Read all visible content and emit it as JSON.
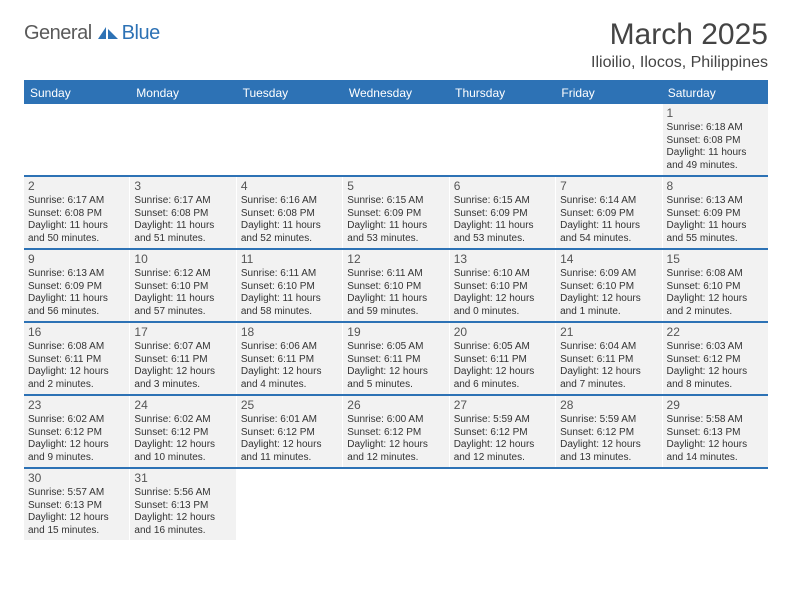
{
  "brand": {
    "part1": "General",
    "part2": "Blue",
    "icon_color": "#2d72b5"
  },
  "header": {
    "month_title": "March 2025",
    "location": "Ilioilio, Ilocos, Philippines"
  },
  "styling": {
    "header_bar_color": "#2d72b5",
    "cell_bg": "#f2f2f2",
    "separator_color": "#2d72b5",
    "text_color": "#333333",
    "brand_gray": "#5a5a5a"
  },
  "weekdays": [
    "Sunday",
    "Monday",
    "Tuesday",
    "Wednesday",
    "Thursday",
    "Friday",
    "Saturday"
  ],
  "weeks": [
    [
      null,
      null,
      null,
      null,
      null,
      null,
      {
        "num": "1",
        "sunrise": "6:18 AM",
        "sunset": "6:08 PM",
        "daylight": "11 hours and 49 minutes."
      }
    ],
    [
      {
        "num": "2",
        "sunrise": "6:17 AM",
        "sunset": "6:08 PM",
        "daylight": "11 hours and 50 minutes."
      },
      {
        "num": "3",
        "sunrise": "6:17 AM",
        "sunset": "6:08 PM",
        "daylight": "11 hours and 51 minutes."
      },
      {
        "num": "4",
        "sunrise": "6:16 AM",
        "sunset": "6:08 PM",
        "daylight": "11 hours and 52 minutes."
      },
      {
        "num": "5",
        "sunrise": "6:15 AM",
        "sunset": "6:09 PM",
        "daylight": "11 hours and 53 minutes."
      },
      {
        "num": "6",
        "sunrise": "6:15 AM",
        "sunset": "6:09 PM",
        "daylight": "11 hours and 53 minutes."
      },
      {
        "num": "7",
        "sunrise": "6:14 AM",
        "sunset": "6:09 PM",
        "daylight": "11 hours and 54 minutes."
      },
      {
        "num": "8",
        "sunrise": "6:13 AM",
        "sunset": "6:09 PM",
        "daylight": "11 hours and 55 minutes."
      }
    ],
    [
      {
        "num": "9",
        "sunrise": "6:13 AM",
        "sunset": "6:09 PM",
        "daylight": "11 hours and 56 minutes."
      },
      {
        "num": "10",
        "sunrise": "6:12 AM",
        "sunset": "6:10 PM",
        "daylight": "11 hours and 57 minutes."
      },
      {
        "num": "11",
        "sunrise": "6:11 AM",
        "sunset": "6:10 PM",
        "daylight": "11 hours and 58 minutes."
      },
      {
        "num": "12",
        "sunrise": "6:11 AM",
        "sunset": "6:10 PM",
        "daylight": "11 hours and 59 minutes."
      },
      {
        "num": "13",
        "sunrise": "6:10 AM",
        "sunset": "6:10 PM",
        "daylight": "12 hours and 0 minutes."
      },
      {
        "num": "14",
        "sunrise": "6:09 AM",
        "sunset": "6:10 PM",
        "daylight": "12 hours and 1 minute."
      },
      {
        "num": "15",
        "sunrise": "6:08 AM",
        "sunset": "6:10 PM",
        "daylight": "12 hours and 2 minutes."
      }
    ],
    [
      {
        "num": "16",
        "sunrise": "6:08 AM",
        "sunset": "6:11 PM",
        "daylight": "12 hours and 2 minutes."
      },
      {
        "num": "17",
        "sunrise": "6:07 AM",
        "sunset": "6:11 PM",
        "daylight": "12 hours and 3 minutes."
      },
      {
        "num": "18",
        "sunrise": "6:06 AM",
        "sunset": "6:11 PM",
        "daylight": "12 hours and 4 minutes."
      },
      {
        "num": "19",
        "sunrise": "6:05 AM",
        "sunset": "6:11 PM",
        "daylight": "12 hours and 5 minutes."
      },
      {
        "num": "20",
        "sunrise": "6:05 AM",
        "sunset": "6:11 PM",
        "daylight": "12 hours and 6 minutes."
      },
      {
        "num": "21",
        "sunrise": "6:04 AM",
        "sunset": "6:11 PM",
        "daylight": "12 hours and 7 minutes."
      },
      {
        "num": "22",
        "sunrise": "6:03 AM",
        "sunset": "6:12 PM",
        "daylight": "12 hours and 8 minutes."
      }
    ],
    [
      {
        "num": "23",
        "sunrise": "6:02 AM",
        "sunset": "6:12 PM",
        "daylight": "12 hours and 9 minutes."
      },
      {
        "num": "24",
        "sunrise": "6:02 AM",
        "sunset": "6:12 PM",
        "daylight": "12 hours and 10 minutes."
      },
      {
        "num": "25",
        "sunrise": "6:01 AM",
        "sunset": "6:12 PM",
        "daylight": "12 hours and 11 minutes."
      },
      {
        "num": "26",
        "sunrise": "6:00 AM",
        "sunset": "6:12 PM",
        "daylight": "12 hours and 12 minutes."
      },
      {
        "num": "27",
        "sunrise": "5:59 AM",
        "sunset": "6:12 PM",
        "daylight": "12 hours and 12 minutes."
      },
      {
        "num": "28",
        "sunrise": "5:59 AM",
        "sunset": "6:12 PM",
        "daylight": "12 hours and 13 minutes."
      },
      {
        "num": "29",
        "sunrise": "5:58 AM",
        "sunset": "6:13 PM",
        "daylight": "12 hours and 14 minutes."
      }
    ],
    [
      {
        "num": "30",
        "sunrise": "5:57 AM",
        "sunset": "6:13 PM",
        "daylight": "12 hours and 15 minutes."
      },
      {
        "num": "31",
        "sunrise": "5:56 AM",
        "sunset": "6:13 PM",
        "daylight": "12 hours and 16 minutes."
      },
      null,
      null,
      null,
      null,
      null
    ]
  ],
  "labels": {
    "sunrise_prefix": "Sunrise: ",
    "sunset_prefix": "Sunset: ",
    "daylight_prefix": "Daylight: "
  }
}
